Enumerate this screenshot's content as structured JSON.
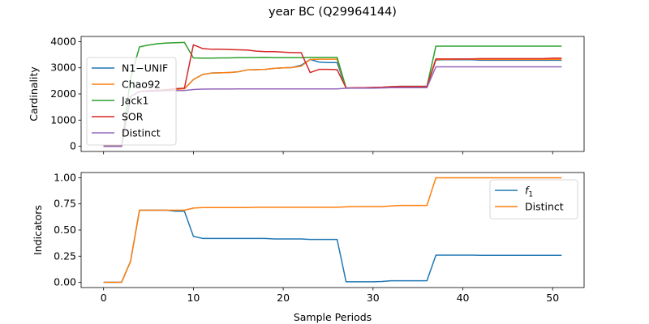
{
  "chart_data": {
    "title": "year BC (Q29964144)",
    "xlabel": "Sample Periods",
    "x_ticks": [
      "0",
      "10",
      "20",
      "30",
      "40",
      "50"
    ],
    "xlim": [
      -2.5,
      53.5
    ],
    "colors": {
      "blue": "#1f77b4",
      "orange": "#ff7f0e",
      "green": "#2ca02c",
      "red": "#d62728",
      "purple": "#9467bd"
    },
    "panels": [
      {
        "type": "line",
        "ylabel": "Cardinality",
        "ylim": [
          -200,
          4200
        ],
        "y_ticks": [
          "0",
          "1000",
          "2000",
          "3000",
          "4000"
        ],
        "legend_position": "center-left",
        "series": [
          {
            "name": "N1−UNIF",
            "color": "#1f77b4",
            "x": [
              0,
              1,
              2,
              3,
              4,
              5,
              6,
              7,
              8,
              9,
              10,
              11,
              12,
              13,
              14,
              15,
              16,
              17,
              18,
              19,
              20,
              21,
              22,
              23,
              24,
              25,
              26,
              27,
              28,
              29,
              30,
              31,
              32,
              33,
              34,
              35,
              36,
              37,
              38,
              39,
              40,
              41,
              42,
              43,
              44,
              45,
              46,
              47,
              48,
              49,
              50,
              51
            ],
            "y": [
              0,
              0,
              0,
              1900,
              2100,
              2120,
              2140,
              2160,
              2180,
              2200,
              2550,
              2740,
              2800,
              2810,
              2820,
              2850,
              2920,
              2930,
              2940,
              2980,
              3000,
              3010,
              3100,
              3320,
              3220,
              3200,
              3200,
              2220,
              2230,
              2230,
              2240,
              2250,
              2270,
              2280,
              2280,
              2280,
              2280,
              3300,
              3310,
              3310,
              3310,
              3310,
              3290,
              3290,
              3290,
              3290,
              3290,
              3290,
              3290,
              3290,
              3290,
              3290
            ]
          },
          {
            "name": "Chao92",
            "color": "#ff7f0e",
            "x": [
              0,
              1,
              2,
              3,
              4,
              5,
              6,
              7,
              8,
              9,
              10,
              11,
              12,
              13,
              14,
              15,
              16,
              17,
              18,
              19,
              20,
              21,
              22,
              23,
              24,
              25,
              26,
              27,
              28,
              29,
              30,
              31,
              32,
              33,
              34,
              35,
              36,
              37,
              38,
              39,
              40,
              41,
              42,
              43,
              44,
              45,
              46,
              47,
              48,
              49,
              50,
              51
            ],
            "y": [
              0,
              0,
              0,
              1900,
              2100,
              2120,
              2140,
              2160,
              2180,
              2200,
              2550,
              2740,
              2800,
              2810,
              2820,
              2850,
              2920,
              2930,
              2940,
              2980,
              3000,
              3010,
              3060,
              3320,
              3330,
              3330,
              3330,
              2220,
              2230,
              2230,
              2240,
              2250,
              2270,
              2280,
              2280,
              2280,
              2280,
              3320,
              3320,
              3330,
              3330,
              3330,
              3320,
              3320,
              3320,
              3320,
              3320,
              3320,
              3320,
              3320,
              3320,
              3320
            ]
          },
          {
            "name": "Jack1",
            "color": "#2ca02c",
            "x": [
              0,
              1,
              2,
              3,
              4,
              5,
              6,
              7,
              8,
              9,
              10,
              11,
              12,
              13,
              14,
              15,
              16,
              17,
              18,
              19,
              20,
              21,
              22,
              23,
              24,
              25,
              26,
              27,
              28,
              29,
              30,
              31,
              32,
              33,
              34,
              35,
              36,
              37,
              38,
              39,
              40,
              41,
              42,
              43,
              44,
              45,
              46,
              47,
              48,
              49,
              50,
              51
            ],
            "y": [
              0,
              0,
              0,
              2600,
              3800,
              3870,
              3920,
              3950,
              3960,
              3970,
              3380,
              3370,
              3370,
              3380,
              3380,
              3390,
              3390,
              3395,
              3400,
              3390,
              3390,
              3390,
              3390,
              3400,
              3400,
              3400,
              3400,
              2230,
              2230,
              2230,
              2240,
              2250,
              2280,
              2290,
              2290,
              2290,
              2290,
              3830,
              3830,
              3830,
              3830,
              3830,
              3830,
              3830,
              3830,
              3830,
              3830,
              3830,
              3830,
              3830,
              3830,
              3830
            ]
          },
          {
            "name": "SOR",
            "color": "#d62728",
            "x": [
              0,
              1,
              2,
              3,
              4,
              5,
              6,
              7,
              8,
              9,
              10,
              11,
              12,
              13,
              14,
              15,
              16,
              17,
              18,
              19,
              20,
              21,
              22,
              23,
              24,
              25,
              26,
              27,
              28,
              29,
              30,
              31,
              32,
              33,
              34,
              35,
              36,
              37,
              38,
              39,
              40,
              41,
              42,
              43,
              44,
              45,
              46,
              47,
              48,
              49,
              50,
              51
            ],
            "y": [
              0,
              0,
              0,
              1900,
              2100,
              2120,
              2140,
              2160,
              2200,
              2220,
              3880,
              3740,
              3710,
              3710,
              3700,
              3690,
              3680,
              3640,
              3620,
              3620,
              3600,
              3580,
              3580,
              2820,
              2940,
              2940,
              2930,
              2230,
              2240,
              2240,
              2250,
              2260,
              2280,
              2290,
              2290,
              2290,
              2290,
              3340,
              3340,
              3340,
              3340,
              3340,
              3350,
              3350,
              3350,
              3350,
              3350,
              3350,
              3350,
              3350,
              3370,
              3370
            ]
          },
          {
            "name": "Distinct",
            "color": "#9467bd",
            "x": [
              0,
              1,
              2,
              3,
              4,
              5,
              6,
              7,
              8,
              9,
              10,
              11,
              12,
              13,
              14,
              15,
              16,
              17,
              18,
              19,
              20,
              21,
              22,
              23,
              24,
              25,
              26,
              27,
              28,
              29,
              30,
              31,
              32,
              33,
              34,
              35,
              36,
              37,
              38,
              39,
              40,
              41,
              42,
              43,
              44,
              45,
              46,
              47,
              48,
              49,
              50,
              51
            ],
            "y": [
              0,
              0,
              0,
              1900,
              2090,
              2100,
              2110,
              2120,
              2130,
              2130,
              2170,
              2185,
              2190,
              2190,
              2190,
              2195,
              2195,
              2195,
              2195,
              2195,
              2195,
              2195,
              2195,
              2195,
              2195,
              2195,
              2195,
              2220,
              2220,
              2220,
              2220,
              2230,
              2240,
              2240,
              2240,
              2240,
              2240,
              3040,
              3040,
              3040,
              3040,
              3040,
              3040,
              3040,
              3040,
              3040,
              3040,
              3040,
              3040,
              3040,
              3040,
              3040
            ]
          }
        ]
      },
      {
        "type": "line",
        "ylabel": "Indicators",
        "ylim": [
          -0.05,
          1.05
        ],
        "y_ticks": [
          "0.00",
          "0.25",
          "0.50",
          "0.75",
          "1.00"
        ],
        "legend_position": "upper-right",
        "series": [
          {
            "name": "f1",
            "name_main": "f",
            "name_sub": "1",
            "color": "#1f77b4",
            "x": [
              0,
              1,
              2,
              3,
              4,
              5,
              6,
              7,
              8,
              9,
              10,
              11,
              12,
              13,
              14,
              15,
              16,
              17,
              18,
              19,
              20,
              21,
              22,
              23,
              24,
              25,
              26,
              27,
              28,
              29,
              30,
              31,
              32,
              33,
              34,
              35,
              36,
              37,
              38,
              39,
              40,
              41,
              42,
              43,
              44,
              45,
              46,
              47,
              48,
              49,
              50,
              51
            ],
            "y": [
              0.0,
              0.0,
              0.0,
              0.2,
              0.69,
              0.69,
              0.69,
              0.69,
              0.68,
              0.68,
              0.44,
              0.42,
              0.42,
              0.42,
              0.42,
              0.42,
              0.42,
              0.42,
              0.42,
              0.415,
              0.415,
              0.415,
              0.415,
              0.41,
              0.41,
              0.41,
              0.41,
              0.005,
              0.005,
              0.005,
              0.005,
              0.008,
              0.015,
              0.015,
              0.015,
              0.015,
              0.015,
              0.26,
              0.26,
              0.26,
              0.26,
              0.26,
              0.258,
              0.258,
              0.258,
              0.258,
              0.258,
              0.258,
              0.258,
              0.258,
              0.258,
              0.258
            ]
          },
          {
            "name": "Distinct",
            "color": "#ff7f0e",
            "x": [
              0,
              1,
              2,
              3,
              4,
              5,
              6,
              7,
              8,
              9,
              10,
              11,
              12,
              13,
              14,
              15,
              16,
              17,
              18,
              19,
              20,
              21,
              22,
              23,
              24,
              25,
              26,
              27,
              28,
              29,
              30,
              31,
              32,
              33,
              34,
              35,
              36,
              37,
              38,
              39,
              40,
              41,
              42,
              43,
              44,
              45,
              46,
              47,
              48,
              49,
              50,
              51
            ],
            "y": [
              0.0,
              0.0,
              0.0,
              0.2,
              0.69,
              0.69,
              0.69,
              0.69,
              0.69,
              0.69,
              0.71,
              0.715,
              0.715,
              0.715,
              0.715,
              0.715,
              0.715,
              0.718,
              0.718,
              0.718,
              0.718,
              0.718,
              0.718,
              0.718,
              0.718,
              0.718,
              0.718,
              0.722,
              0.725,
              0.725,
              0.725,
              0.725,
              0.73,
              0.735,
              0.735,
              0.735,
              0.735,
              1.0,
              1.0,
              1.0,
              1.0,
              1.0,
              1.0,
              1.0,
              1.0,
              1.0,
              1.0,
              1.0,
              1.0,
              1.0,
              1.0,
              1.0
            ]
          }
        ]
      }
    ]
  }
}
